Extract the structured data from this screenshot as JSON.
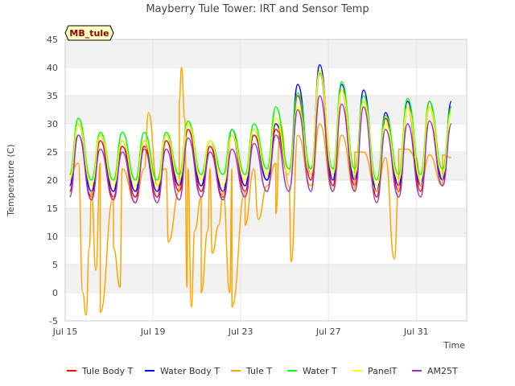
{
  "chart_data": {
    "type": "line",
    "title": "Mayberry Tule Tower: IRT and Sensor Temp",
    "badge": "MB_tule",
    "xlabel": "Time",
    "ylabel": "Temperature (C)",
    "ylim": [
      -5,
      45
    ],
    "xlim_days": [
      15,
      33.3
    ],
    "yticks": [
      -5,
      0,
      5,
      10,
      15,
      20,
      25,
      30,
      35,
      40,
      45
    ],
    "xticks": [
      {
        "day": 15,
        "label": "Jul 15"
      },
      {
        "day": 19,
        "label": "Jul 19"
      },
      {
        "day": 23,
        "label": "Jul 23"
      },
      {
        "day": 27,
        "label": "Jul 27"
      },
      {
        "day": 31,
        "label": "Jul 31"
      }
    ],
    "x_units": "day of July",
    "daily": {
      "days": [
        15,
        16,
        17,
        18,
        19,
        20,
        21,
        22,
        23,
        24,
        25,
        26,
        27,
        28,
        29,
        30,
        31,
        32
      ],
      "peak_hour_fraction": 0.6,
      "min_hour_fraction": 0.2
    },
    "series": [
      {
        "name": "Tule Body T",
        "color": "#ff0000",
        "daily_max": [
          28,
          27,
          26,
          26,
          27,
          29,
          26,
          28,
          28,
          29,
          35,
          39,
          36,
          34,
          31,
          33,
          33,
          33
        ],
        "daily_min": [
          18,
          17,
          17,
          17,
          17,
          18,
          18,
          17,
          18,
          20,
          21,
          20,
          19,
          19,
          17,
          18,
          18,
          20
        ]
      },
      {
        "name": "Water Body T",
        "color": "#0000ff",
        "daily_max": [
          30,
          28,
          27,
          27,
          28,
          30,
          27,
          29,
          29,
          30,
          37,
          40.5,
          37,
          36,
          32,
          34,
          34,
          34
        ],
        "daily_min": [
          19,
          18,
          18,
          18,
          18,
          19,
          19,
          18,
          19,
          20,
          21,
          21,
          20,
          20,
          18,
          19,
          19,
          20
        ]
      },
      {
        "name": "Tule T",
        "color": "#ffa500",
        "daily_max": [
          23,
          23,
          22,
          22,
          22,
          22,
          22,
          22,
          22,
          23,
          28,
          30,
          28,
          25,
          24,
          25.5,
          24.5,
          24
        ],
        "daily_min": [
          21,
          18,
          17,
          16,
          19,
          18,
          17,
          18,
          18,
          19,
          19,
          19,
          18,
          18,
          18,
          19,
          19,
          19
        ],
        "spikes": [
          [
            15.8,
            0
          ],
          [
            15.95,
            -4
          ],
          [
            16.1,
            8
          ],
          [
            16.4,
            4
          ],
          [
            16.6,
            -3.5
          ],
          [
            17.2,
            8
          ],
          [
            17.5,
            1
          ],
          [
            18.8,
            32
          ],
          [
            19.5,
            22
          ],
          [
            19.7,
            9
          ],
          [
            20.2,
            34
          ],
          [
            20.3,
            40
          ],
          [
            20.45,
            31
          ],
          [
            20.55,
            1
          ],
          [
            20.75,
            -2.5
          ],
          [
            20.9,
            11
          ],
          [
            21.2,
            0
          ],
          [
            21.5,
            11
          ],
          [
            21.7,
            7
          ],
          [
            22.0,
            12
          ],
          [
            22.5,
            0
          ],
          [
            22.6,
            -2.5
          ],
          [
            23.2,
            12
          ],
          [
            23.8,
            13
          ],
          [
            24.6,
            14
          ],
          [
            24.8,
            30
          ],
          [
            25.3,
            5.5
          ],
          [
            28.2,
            25
          ],
          [
            30.0,
            6
          ],
          [
            30.2,
            25.5
          ],
          [
            31.0,
            24
          ],
          [
            32.2,
            24.5
          ]
        ]
      },
      {
        "name": "Water T",
        "color": "#00ff00",
        "daily_max": [
          31,
          28.5,
          28.5,
          28.5,
          28.5,
          30.5,
          27,
          29,
          30,
          33,
          35.5,
          39,
          37.5,
          35,
          31.5,
          34.5,
          34,
          33
        ],
        "daily_min": [
          21,
          20,
          20,
          20,
          20,
          21,
          21,
          21,
          21,
          22,
          22,
          22,
          22,
          22,
          20,
          21,
          21,
          22
        ]
      },
      {
        "name": "PanelT",
        "color": "#ffff00",
        "daily_max": [
          30,
          28,
          27,
          27,
          28,
          30,
          27,
          28,
          29,
          31,
          33,
          39.5,
          36,
          34,
          30,
          33,
          33,
          32
        ],
        "daily_min": [
          20,
          19,
          19,
          19,
          19,
          20,
          20,
          19,
          20,
          21,
          21,
          21,
          21,
          21,
          19,
          20,
          20,
          21
        ]
      },
      {
        "name": "AM25T",
        "color": "#9932cc",
        "daily_max": [
          28,
          25.5,
          25,
          25.5,
          25.5,
          27.5,
          25,
          25.5,
          26.5,
          28,
          32.5,
          35,
          33.5,
          33,
          29,
          30,
          30.5,
          30
        ],
        "daily_min": [
          17,
          16.5,
          16.5,
          16,
          16,
          16.5,
          17,
          16.5,
          17,
          18,
          18,
          18,
          18,
          18,
          16,
          17,
          17,
          19
        ]
      }
    ]
  }
}
